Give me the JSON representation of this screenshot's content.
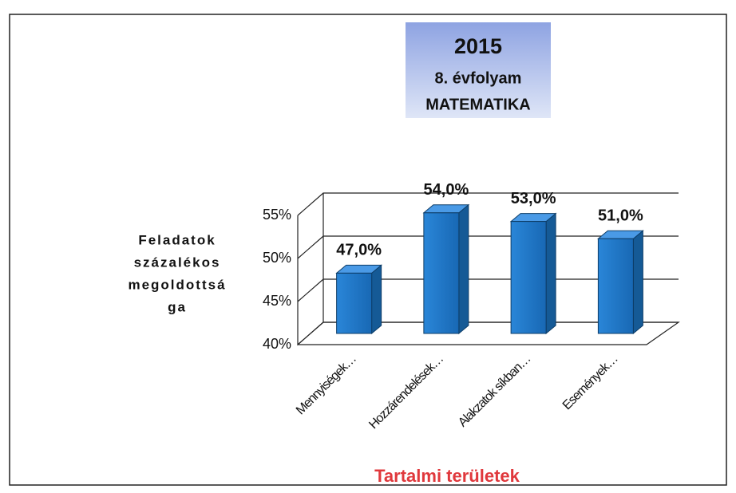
{
  "chart_data": {
    "type": "bar3d",
    "title": [
      "2015",
      "8. évfolyam",
      "MATEMATIKA"
    ],
    "y_label": [
      "Feladatok",
      "százalékos",
      "megoldottsá",
      "ga"
    ],
    "x_label": "Tartalmi területek",
    "categories": [
      "Mennyiségek…",
      "Hozzárendelések…",
      "Alakzatok síkban…",
      "Események…"
    ],
    "values": [
      47,
      54,
      53,
      51
    ],
    "value_labels": [
      "47,0%",
      "54,0%",
      "53,0%",
      "51,0%"
    ],
    "color": "#1f77c8",
    "ylim": [
      40,
      55
    ],
    "yticks": [
      {
        "value": 40,
        "label": "40%"
      },
      {
        "value": 45,
        "label": "45%"
      },
      {
        "value": 50,
        "label": "50%"
      },
      {
        "value": 55,
        "label": "55%"
      }
    ],
    "grid": true
  }
}
